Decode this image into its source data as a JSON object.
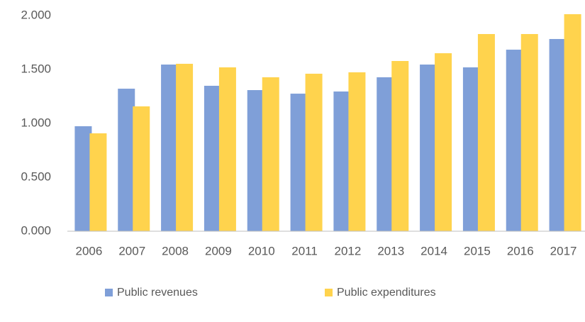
{
  "chart_data": {
    "type": "bar",
    "categories": [
      "2006",
      "2007",
      "2008",
      "2009",
      "2010",
      "2011",
      "2012",
      "2013",
      "2014",
      "2015",
      "2016",
      "2017"
    ],
    "series": [
      {
        "name": "Public revenues",
        "color": "#7f9fd8",
        "values": [
          974,
          1322,
          1546,
          1349,
          1309,
          1276,
          1296,
          1428,
          1546,
          1520,
          1684,
          1783
        ]
      },
      {
        "name": "Public expenditures",
        "color": "#ffd34d",
        "values": [
          908,
          1158,
          1553,
          1520,
          1428,
          1461,
          1474,
          1579,
          1651,
          1829,
          1829,
          2013
        ]
      }
    ],
    "ylim": [
      0,
      2000
    ],
    "yticks": [
      {
        "value": 0,
        "label": "0.000"
      },
      {
        "value": 500,
        "label": "0.500"
      },
      {
        "value": 1000,
        "label": "1.000"
      },
      {
        "value": 1500,
        "label": "1.500"
      },
      {
        "value": 2000,
        "label": "2.000"
      }
    ],
    "legend": "bottom"
  }
}
